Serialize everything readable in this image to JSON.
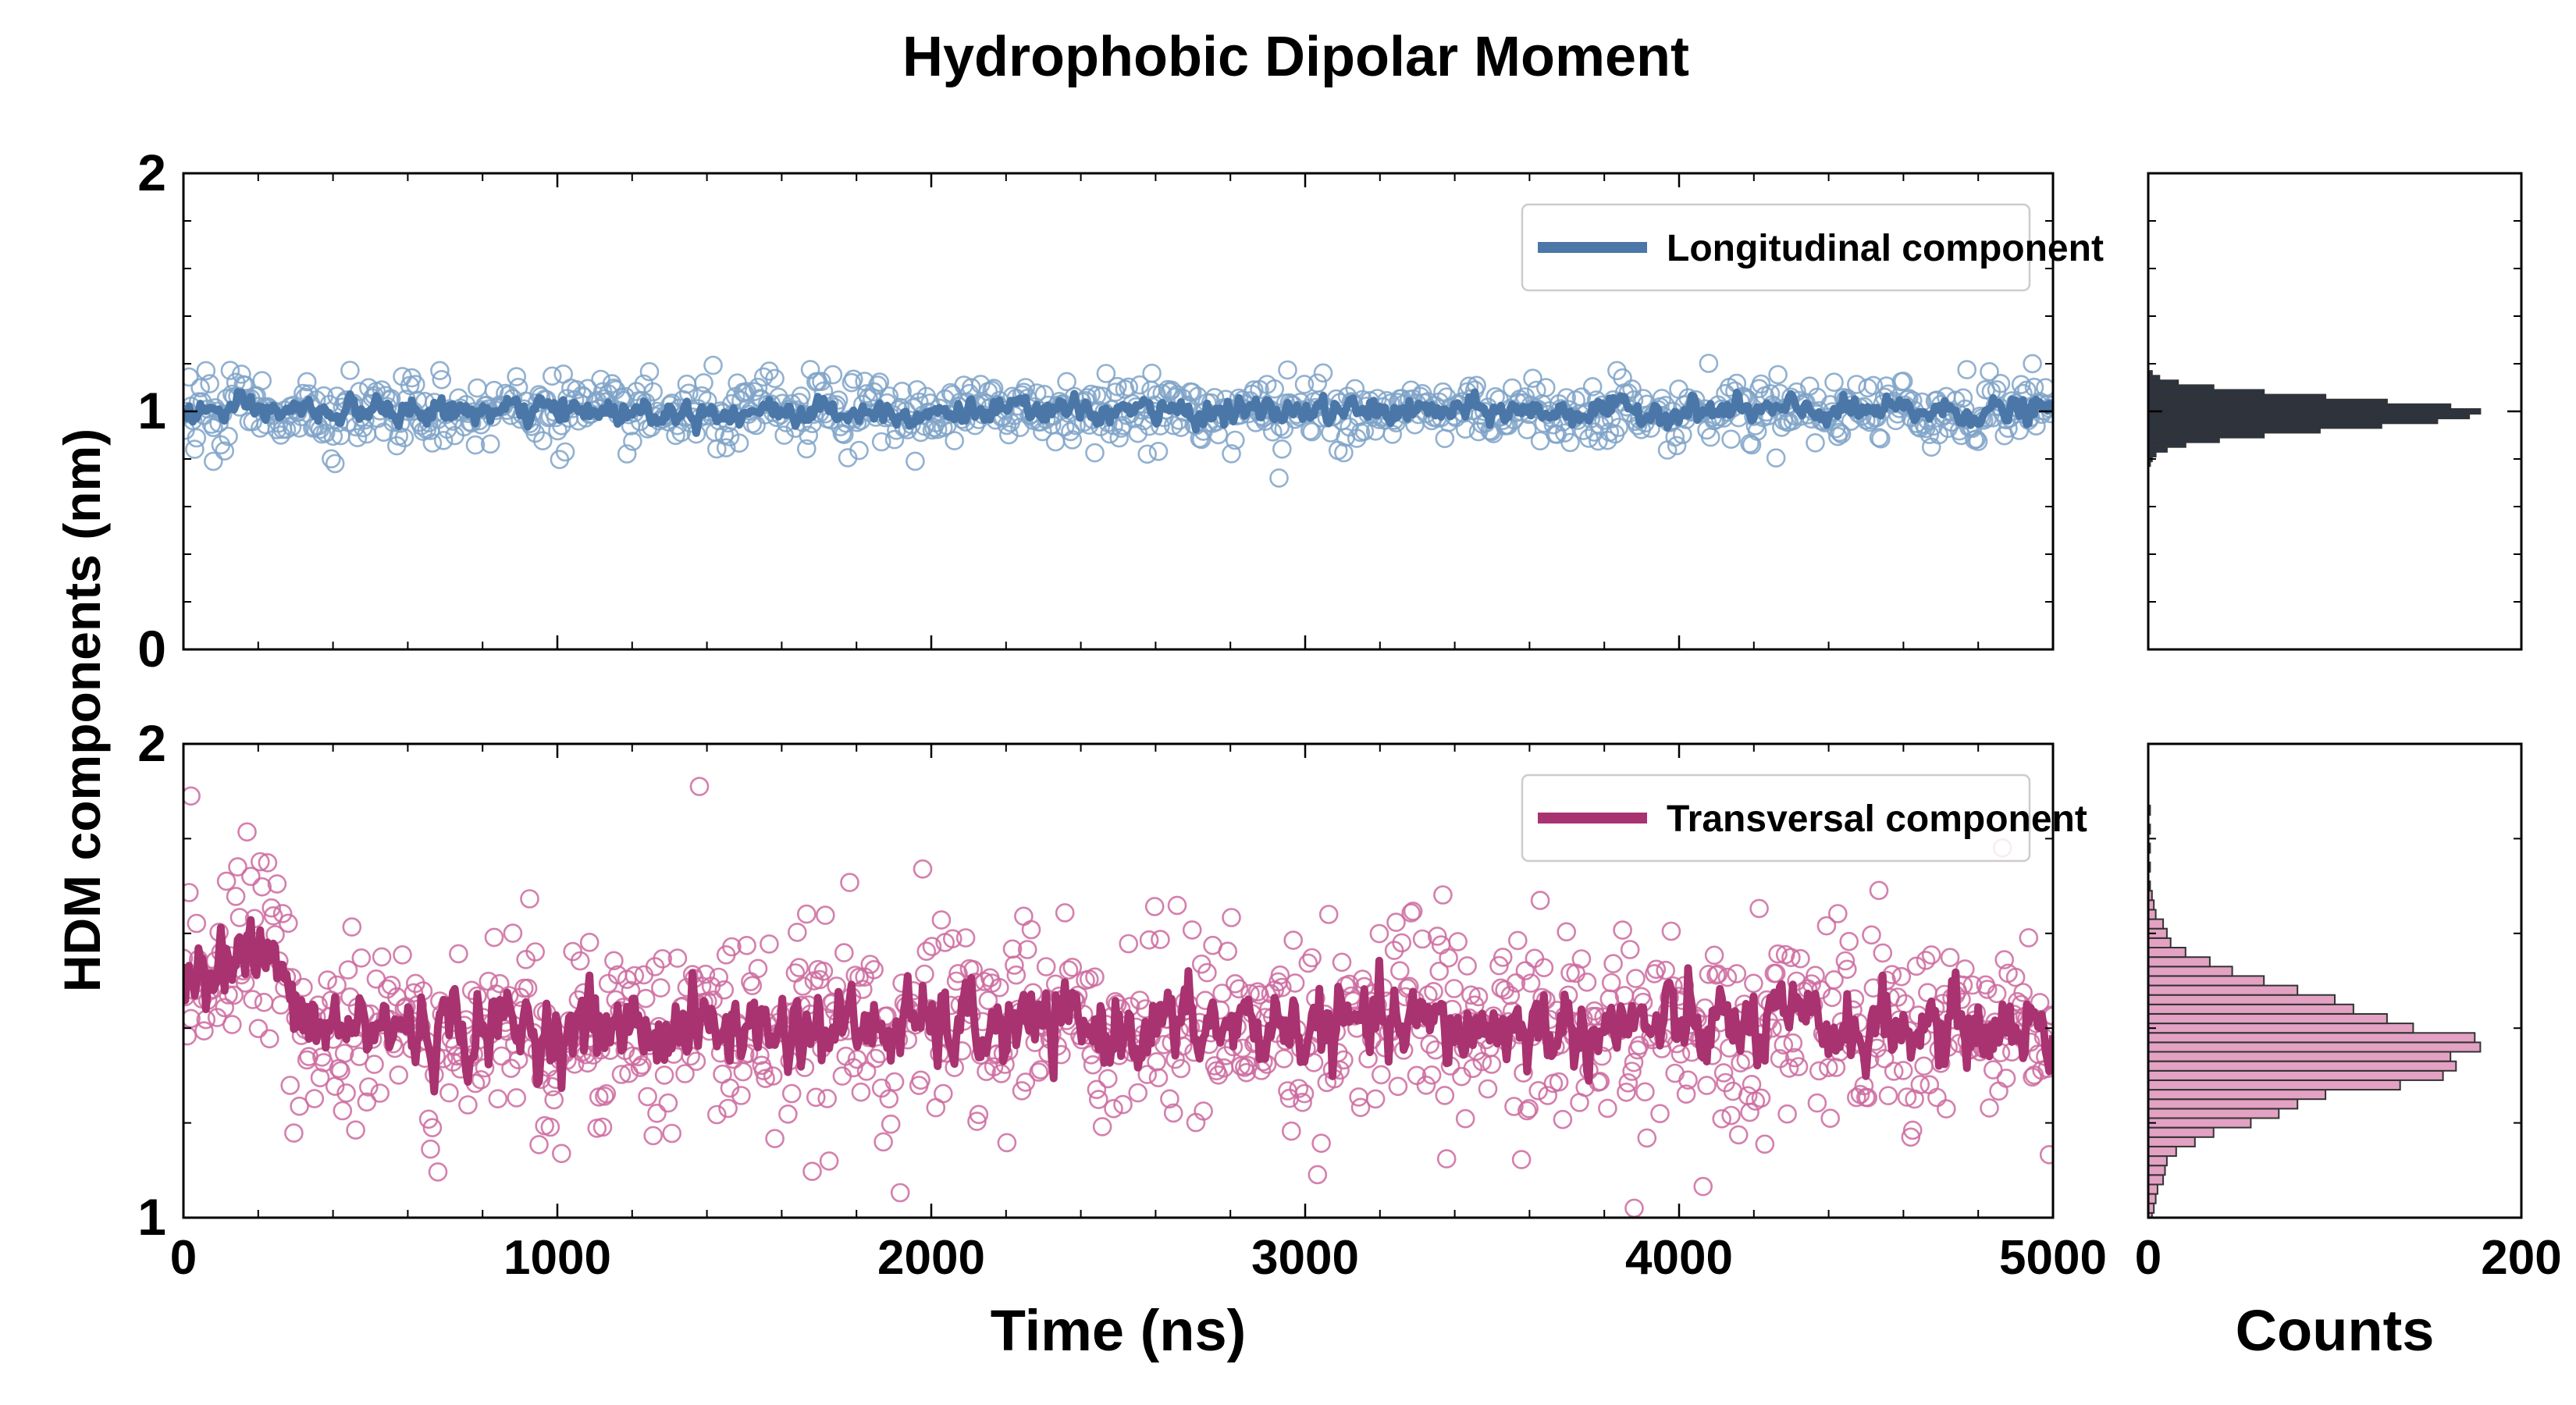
{
  "figure_title": "Hydrophobic Dipolar Moment",
  "shared_ylabel": "HDM components (nm)",
  "colors": {
    "longitudinal": "#4a77a8",
    "longitudinal_marker": "#7fa3c8",
    "transversal": "#a83370",
    "transversal_marker": "#cc6a9f",
    "hist_top_fill": "#2b3440",
    "hist_bottom_fill": "#e3a2c3",
    "hist_edge": "#333333"
  },
  "chart_data": [
    {
      "id": "top-timeseries",
      "type": "scatter",
      "xlabel": "",
      "xlim": [
        0,
        5000
      ],
      "xticks": [
        0,
        1000,
        2000,
        3000,
        4000,
        5000
      ],
      "show_xticklabels": false,
      "ylim": [
        0,
        2
      ],
      "yticks": [
        0,
        1,
        2
      ],
      "yticklabels": [
        "0",
        "1",
        "2"
      ],
      "legend": {
        "label": "Longitudinal component",
        "position": "top-right"
      },
      "series": [
        {
          "name": "Longitudinal component (samples)",
          "style": "open-circle",
          "n_points": 1000,
          "x_range": [
            0,
            5000
          ],
          "mean": 1.0,
          "std": 0.065,
          "outliers": [
            {
              "x": 2930,
              "y": 0.72
            },
            {
              "x": 80,
              "y": 0.79
            },
            {
              "x": 2590,
              "y": 1.16
            }
          ]
        },
        {
          "name": "Longitudinal component (running average)",
          "style": "line",
          "mean": 1.0,
          "amplitude": 0.025
        }
      ]
    },
    {
      "id": "bottom-timeseries",
      "type": "scatter",
      "xlabel": "Time (ns)",
      "xlim": [
        0,
        5000
      ],
      "xticks": [
        0,
        1000,
        2000,
        3000,
        4000,
        5000
      ],
      "xticklabels": [
        "0",
        "1000",
        "2000",
        "3000",
        "4000",
        "5000"
      ],
      "ylim": [
        1,
        2
      ],
      "yticks": [
        1,
        2
      ],
      "yticklabels": [
        "1",
        "2"
      ],
      "legend": {
        "label": "Transversal component",
        "position": "top-right"
      },
      "series": [
        {
          "name": "Transversal component (samples)",
          "style": "open-circle",
          "n_points": 1000,
          "x_range": [
            0,
            5000
          ],
          "mean": 1.4,
          "std": 0.1,
          "outliers": [
            {
              "x": 20,
              "y": 1.89
            },
            {
              "x": 1380,
              "y": 1.91
            },
            {
              "x": 3880,
              "y": 1.02
            }
          ]
        },
        {
          "name": "Transversal component (running average)",
          "style": "line",
          "segments": [
            {
              "x": [
                0,
                250
              ],
              "y": [
                1.55,
                1.55
              ]
            },
            {
              "x": [
                300,
                5000
              ],
              "y": [
                1.4,
                1.4
              ]
            }
          ],
          "amplitude": 0.04
        }
      ]
    },
    {
      "id": "top-histogram",
      "type": "bar",
      "orientation": "horizontal",
      "xlim": [
        0,
        200
      ],
      "ylim": [
        0,
        2
      ],
      "bin_width": 0.02,
      "bins": [
        {
          "y": 0.78,
          "count": 1
        },
        {
          "y": 0.8,
          "count": 2
        },
        {
          "y": 0.82,
          "count": 4
        },
        {
          "y": 0.84,
          "count": 10
        },
        {
          "y": 0.86,
          "count": 20
        },
        {
          "y": 0.88,
          "count": 38
        },
        {
          "y": 0.9,
          "count": 62
        },
        {
          "y": 0.92,
          "count": 92
        },
        {
          "y": 0.94,
          "count": 125
        },
        {
          "y": 0.96,
          "count": 155
        },
        {
          "y": 0.98,
          "count": 172
        },
        {
          "y": 1.0,
          "count": 178
        },
        {
          "y": 1.02,
          "count": 162
        },
        {
          "y": 1.04,
          "count": 128
        },
        {
          "y": 1.06,
          "count": 95
        },
        {
          "y": 1.08,
          "count": 62
        },
        {
          "y": 1.1,
          "count": 35
        },
        {
          "y": 1.12,
          "count": 16
        },
        {
          "y": 1.14,
          "count": 6
        },
        {
          "y": 1.16,
          "count": 2
        }
      ]
    },
    {
      "id": "bottom-histogram",
      "type": "bar",
      "orientation": "horizontal",
      "xlabel": "Counts",
      "xlim": [
        0,
        200
      ],
      "xticks": [
        0,
        200
      ],
      "xticklabels": [
        "0",
        "200"
      ],
      "ylim": [
        1,
        2
      ],
      "bin_width": 0.02,
      "bins": [
        {
          "y": 1.0,
          "count": 2
        },
        {
          "y": 1.02,
          "count": 3
        },
        {
          "y": 1.04,
          "count": 4
        },
        {
          "y": 1.06,
          "count": 5
        },
        {
          "y": 1.08,
          "count": 8
        },
        {
          "y": 1.1,
          "count": 9
        },
        {
          "y": 1.12,
          "count": 10
        },
        {
          "y": 1.14,
          "count": 15
        },
        {
          "y": 1.16,
          "count": 25
        },
        {
          "y": 1.18,
          "count": 35
        },
        {
          "y": 1.2,
          "count": 55
        },
        {
          "y": 1.22,
          "count": 70
        },
        {
          "y": 1.24,
          "count": 80
        },
        {
          "y": 1.26,
          "count": 95
        },
        {
          "y": 1.28,
          "count": 135
        },
        {
          "y": 1.3,
          "count": 158
        },
        {
          "y": 1.32,
          "count": 165
        },
        {
          "y": 1.34,
          "count": 162
        },
        {
          "y": 1.36,
          "count": 178
        },
        {
          "y": 1.38,
          "count": 175
        },
        {
          "y": 1.4,
          "count": 142
        },
        {
          "y": 1.42,
          "count": 128
        },
        {
          "y": 1.44,
          "count": 110
        },
        {
          "y": 1.46,
          "count": 100
        },
        {
          "y": 1.48,
          "count": 80
        },
        {
          "y": 1.5,
          "count": 62
        },
        {
          "y": 1.52,
          "count": 45
        },
        {
          "y": 1.54,
          "count": 33
        },
        {
          "y": 1.56,
          "count": 20
        },
        {
          "y": 1.58,
          "count": 12
        },
        {
          "y": 1.6,
          "count": 10
        },
        {
          "y": 1.62,
          "count": 8
        },
        {
          "y": 1.64,
          "count": 4
        },
        {
          "y": 1.66,
          "count": 3
        },
        {
          "y": 1.68,
          "count": 2
        },
        {
          "y": 1.7,
          "count": 1
        },
        {
          "y": 1.74,
          "count": 1
        },
        {
          "y": 1.78,
          "count": 1
        },
        {
          "y": 1.82,
          "count": 1
        },
        {
          "y": 1.86,
          "count": 1
        }
      ]
    }
  ]
}
